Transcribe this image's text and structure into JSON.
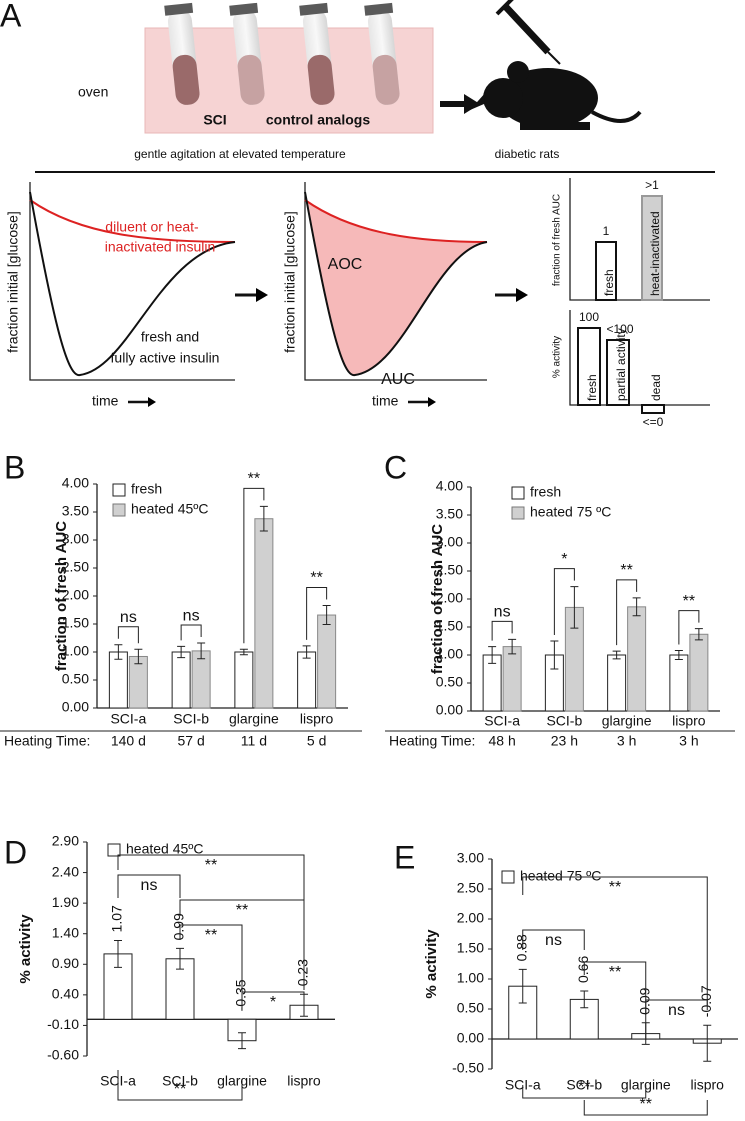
{
  "panel_a": {
    "label": "A",
    "oven": "oven",
    "sci": "SCI",
    "control": "control analogs",
    "caption_left": "gentle agitation at elevated temperature",
    "caption_right": "diabetic rats",
    "curve_red": [
      "diluent or heat-",
      "inactivated insulin"
    ],
    "curve_black": [
      "fresh and",
      "fully active insulin"
    ],
    "y_label": "fraction initial [glucose]",
    "x_label": "time",
    "aoc": "AOC",
    "auc": "AUC",
    "bars_auc": {
      "y_label": "fraction of fresh AUC",
      "labels": [
        "1",
        ">1"
      ],
      "names": [
        "fresh",
        "heat-inactivated"
      ]
    },
    "bars_activity": {
      "y_label": "% activity",
      "labels": [
        "100",
        "<100",
        "<=0"
      ],
      "names": [
        "fresh",
        "partial activity",
        "dead"
      ]
    }
  },
  "chart_data": [
    {
      "type": "bar",
      "panel": "B",
      "y_label": "fraction of fresh AUC",
      "categories": [
        "SCI-a",
        "SCI-b",
        "glargine",
        "lispro"
      ],
      "series": [
        {
          "name": "fresh",
          "color": "#ffffff",
          "values": [
            1.0,
            1.0,
            1.0,
            1.0
          ],
          "errors": [
            0.13,
            0.1,
            0.05,
            0.11
          ]
        },
        {
          "name": "heated 45ºC",
          "color": "#d0d0d0",
          "values": [
            0.92,
            1.02,
            3.38,
            1.66
          ],
          "errors": [
            0.13,
            0.14,
            0.22,
            0.17
          ]
        }
      ],
      "significance": [
        "ns",
        "ns",
        "**",
        "**"
      ],
      "heating_time_label": "Heating Time:",
      "heating_times": [
        "140 d",
        "57 d",
        "11 d",
        "5 d"
      ],
      "ylim": [
        0,
        4
      ],
      "yticks": [
        {
          "value": 0,
          "label": "0.00"
        },
        {
          "value": 0.5,
          "label": "0.50"
        },
        {
          "value": 1,
          "label": "1.00"
        },
        {
          "value": 1.5,
          "label": "1.50"
        },
        {
          "value": 2,
          "label": "2.00"
        },
        {
          "value": 2.5,
          "label": "2.50"
        },
        {
          "value": 3,
          "label": "3.00"
        },
        {
          "value": 3.5,
          "label": "3.50"
        },
        {
          "value": 4,
          "label": "4.00"
        }
      ]
    },
    {
      "type": "bar",
      "panel": "C",
      "y_label": "fraction of fresh AUC",
      "categories": [
        "SCI-a",
        "SCI-b",
        "glargine",
        "lispro"
      ],
      "series": [
        {
          "name": "fresh",
          "color": "#ffffff",
          "values": [
            1.0,
            1.0,
            1.0,
            1.0
          ],
          "errors": [
            0.15,
            0.25,
            0.07,
            0.08
          ]
        },
        {
          "name": "heated 75 ºC",
          "color": "#d0d0d0",
          "values": [
            1.15,
            1.85,
            1.86,
            1.37
          ],
          "errors": [
            0.13,
            0.37,
            0.16,
            0.1
          ]
        }
      ],
      "significance": [
        "ns",
        "*",
        "**",
        "**"
      ],
      "heating_time_label": "Heating Time:",
      "heating_times": [
        "48 h",
        "23 h",
        "3 h",
        "3 h"
      ],
      "ylim": [
        0,
        4
      ],
      "yticks": [
        {
          "value": 0,
          "label": "0.00"
        },
        {
          "value": 0.5,
          "label": "0.50"
        },
        {
          "value": 1,
          "label": "1.00"
        },
        {
          "value": 1.5,
          "label": "1.50"
        },
        {
          "value": 2,
          "label": "2.00"
        },
        {
          "value": 2.5,
          "label": "2.50"
        },
        {
          "value": 3,
          "label": "3.00"
        },
        {
          "value": 3.5,
          "label": "3.50"
        },
        {
          "value": 4,
          "label": "4.00"
        }
      ]
    },
    {
      "type": "bar",
      "panel": "D",
      "y_label": "% activity",
      "categories": [
        "SCI-a",
        "SCI-b",
        "glargine",
        "lispro"
      ],
      "series": [
        {
          "name": "heated 45ºC",
          "color": "#ffffff",
          "values": [
            1.07,
            0.99,
            -0.35,
            0.23
          ],
          "errors": [
            0.22,
            0.17,
            0.13,
            0.18
          ]
        }
      ],
      "significance": [
        "**",
        "ns",
        "**",
        "**",
        "*",
        "**"
      ],
      "ylim": [
        -0.6,
        2.9
      ],
      "yticks": [
        {
          "value": -0.6,
          "label": "-0.60"
        },
        {
          "value": -0.1,
          "label": "-0.10"
        },
        {
          "value": 0.4,
          "label": "0.40"
        },
        {
          "value": 0.9,
          "label": "0.90"
        },
        {
          "value": 1.4,
          "label": "1.40"
        },
        {
          "value": 1.9,
          "label": "1.90"
        },
        {
          "value": 2.4,
          "label": "2.40"
        },
        {
          "value": 2.9,
          "label": "2.90"
        }
      ]
    },
    {
      "type": "bar",
      "panel": "E",
      "y_label": "% activity",
      "categories": [
        "SCI-a",
        "SCI-b",
        "glargine",
        "lispro"
      ],
      "series": [
        {
          "name": "heated 75 ºC",
          "color": "#ffffff",
          "values": [
            0.88,
            0.66,
            0.09,
            -0.07
          ],
          "errors": [
            0.28,
            0.14,
            0.18,
            0.3
          ]
        }
      ],
      "significance": [
        "**",
        "ns",
        "**",
        "ns",
        "**",
        "**"
      ],
      "ylim": [
        -0.5,
        3.0
      ],
      "yticks": [
        {
          "value": -0.5,
          "label": "-0.50"
        },
        {
          "value": 0,
          "label": "0.00"
        },
        {
          "value": 0.5,
          "label": "0.50"
        },
        {
          "value": 1,
          "label": "1.00"
        },
        {
          "value": 1.5,
          "label": "1.50"
        },
        {
          "value": 2,
          "label": "2.00"
        },
        {
          "value": 2.5,
          "label": "2.50"
        },
        {
          "value": 3,
          "label": "3.00"
        }
      ]
    }
  ]
}
